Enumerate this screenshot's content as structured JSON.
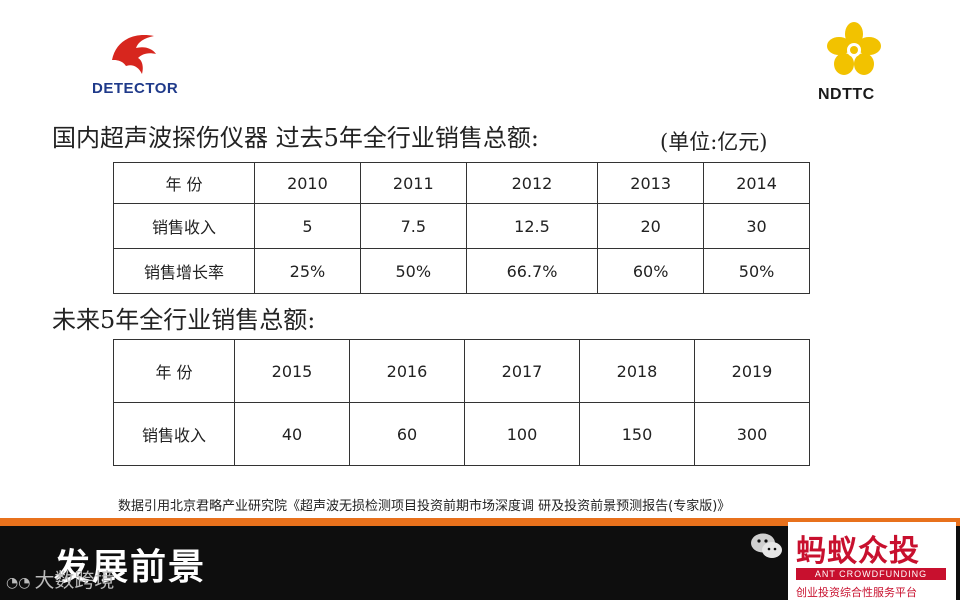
{
  "logos": {
    "left": {
      "brand": "DETECTOR",
      "icon": "eagle-icon",
      "color": "#1f3a8a"
    },
    "right": {
      "brand": "NDTTC",
      "icon": "flower-icon",
      "color": "#f2c200"
    }
  },
  "section1": {
    "title": "国内超声波探伤仪器 过去5年全行业销售总额:",
    "unit": "(单位:亿元)",
    "header": [
      "年  份",
      "2010",
      "2011",
      "2012",
      "2013",
      "2014"
    ],
    "rows": [
      [
        "销售收入",
        "5",
        "7.5",
        "12.5",
        "20",
        "30"
      ],
      [
        "销售增长率",
        "25%",
        "50%",
        "66.7%",
        "60%",
        "50%"
      ]
    ]
  },
  "section2": {
    "title": "未来5年全行业销售总额:",
    "header": [
      "年  份",
      "2015",
      "2016",
      "2017",
      "2018",
      "2019"
    ],
    "rows": [
      [
        "销售收入",
        "40",
        "60",
        "100",
        "150",
        "300"
      ]
    ]
  },
  "source_note": "数据引用北京君略产业研究院《超声波无损检测项目投资前期市场深度调 研及投资前景预测报告(专家版)》",
  "footer": {
    "title": "发展前景",
    "wechat_icon": "wechat-icon",
    "watermark_title": "蚂蚁众投",
    "watermark_en": "ANT CROWDFUNDING",
    "watermark_sub": "创业投资综合性服务平台",
    "watermark_bottom_left": "大数跨境",
    "accent_orange": "#e8711c",
    "accent_red": "#c8102e"
  }
}
